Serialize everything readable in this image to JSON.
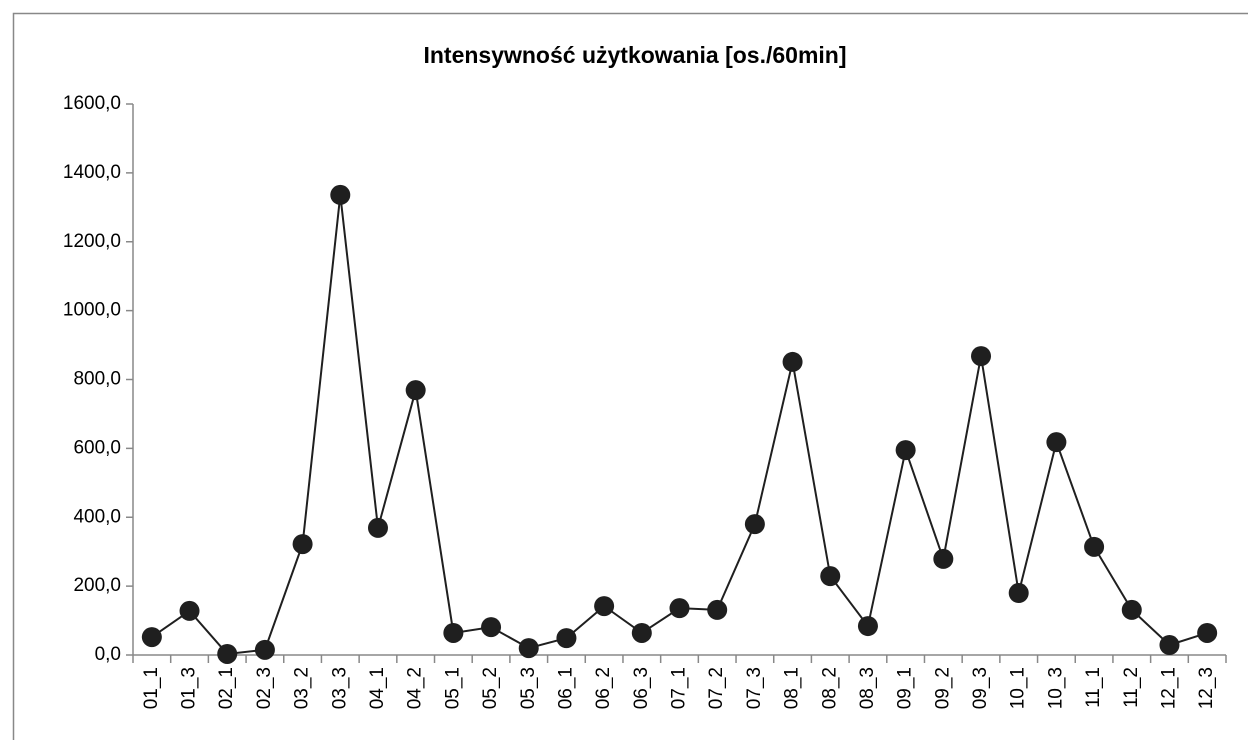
{
  "chart_data": {
    "type": "line",
    "title": "Intensywność użytkowania [os./60min]",
    "categories": [
      "01_1",
      "01_3",
      "02_1",
      "02_3",
      "03_2",
      "03_3",
      "04_1",
      "04_2",
      "05_1",
      "05_2",
      "05_3",
      "06_1",
      "06_2",
      "06_3",
      "07_1",
      "07_2",
      "07_3",
      "08_1",
      "08_2",
      "08_3",
      "09_1",
      "09_2",
      "09_3",
      "10_1",
      "10_3",
      "11_1",
      "11_2",
      "12_1",
      "12_3"
    ],
    "values": [
      52,
      128,
      3,
      15,
      322,
      1336,
      369,
      769,
      64,
      81,
      20,
      49,
      142,
      64,
      136,
      131,
      380,
      851,
      229,
      84,
      595,
      279,
      868,
      180,
      618,
      314,
      131,
      29,
      64
    ],
    "color": "#1f1f1f",
    "ylim": [
      0,
      1600
    ],
    "yticks": [
      {
        "value": 0,
        "label": "0,0"
      },
      {
        "value": 200,
        "label": "200,0"
      },
      {
        "value": 400,
        "label": "400,0"
      },
      {
        "value": 600,
        "label": "600,0"
      },
      {
        "value": 800,
        "label": "800,0"
      },
      {
        "value": 1000,
        "label": "1000,0"
      },
      {
        "value": 1200,
        "label": "1200,0"
      },
      {
        "value": 1400,
        "label": "1400,0"
      },
      {
        "value": 1600,
        "label": "1600,0"
      }
    ],
    "grid": false
  }
}
